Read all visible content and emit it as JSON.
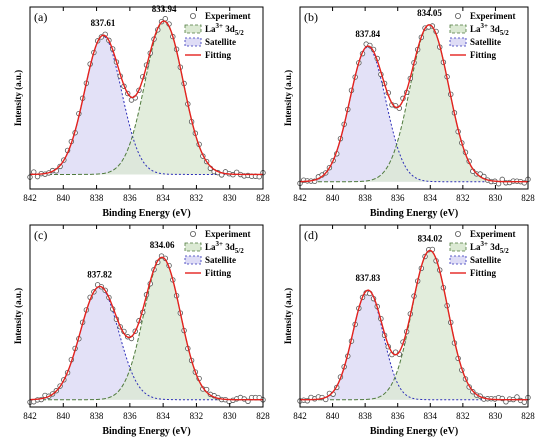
{
  "chart_data": [
    {
      "type": "scatter",
      "panel_label": "(a)",
      "xlabel": "Binding Energy (eV)",
      "ylabel": "Intensity (a.u.)",
      "xlim": [
        842,
        828
      ],
      "x_reversed": true,
      "xticks": [
        "842",
        "840",
        "838",
        "836",
        "834",
        "832",
        "830",
        "828"
      ],
      "legend": [
        "Experiment",
        "La3+ 3d5/2",
        "Satellite",
        "Fitting"
      ],
      "legend_position": "top-right",
      "peak_labels": [
        {
          "text": "837.61",
          "x": 837.61
        },
        {
          "text": "833.94",
          "x": 833.94
        }
      ],
      "series": [
        {
          "name": "La3+ 3d5/2",
          "center": 833.94,
          "height": 0.84,
          "fwhm": 2.7
        },
        {
          "name": "Satellite",
          "center": 837.61,
          "height": 0.76,
          "fwhm": 2.6
        }
      ],
      "baseline": 0.08
    },
    {
      "type": "scatter",
      "panel_label": "(b)",
      "xlabel": "Binding Energy (eV)",
      "ylabel": "Intensity (a.u.)",
      "xlim": [
        842,
        828
      ],
      "x_reversed": true,
      "xticks": [
        "842",
        "840",
        "838",
        "836",
        "834",
        "832",
        "830",
        "828"
      ],
      "legend": [
        "Experiment",
        "La3+ 3d5/2",
        "Satellite",
        "Fitting"
      ],
      "legend_position": "top-right",
      "peak_labels": [
        {
          "text": "837.84",
          "x": 837.84
        },
        {
          "text": "834.05",
          "x": 834.05
        }
      ],
      "series": [
        {
          "name": "La3+ 3d5/2",
          "center": 834.05,
          "height": 0.86,
          "fwhm": 2.8
        },
        {
          "name": "Satellite",
          "center": 837.84,
          "height": 0.74,
          "fwhm": 2.6
        }
      ],
      "baseline": 0.04
    },
    {
      "type": "scatter",
      "panel_label": "(c)",
      "xlabel": "Binding Energy (eV)",
      "ylabel": "Intensity (a.u.)",
      "xlim": [
        842,
        828
      ],
      "x_reversed": true,
      "xticks": [
        "842",
        "840",
        "838",
        "836",
        "834",
        "832",
        "830",
        "828"
      ],
      "legend": [
        "Experiment",
        "La3+ 3d5/2",
        "Satellite",
        "Fitting"
      ],
      "legend_position": "top-right",
      "peak_labels": [
        {
          "text": "837.82",
          "x": 837.82
        },
        {
          "text": "834.06",
          "x": 834.06
        }
      ],
      "series": [
        {
          "name": "La3+ 3d5/2",
          "center": 834.06,
          "height": 0.78,
          "fwhm": 2.6
        },
        {
          "name": "Satellite",
          "center": 837.82,
          "height": 0.62,
          "fwhm": 2.7
        }
      ],
      "baseline": 0.04
    },
    {
      "type": "scatter",
      "panel_label": "(d)",
      "xlabel": "Binding Energy (eV)",
      "ylabel": "Intensity (a.u.)",
      "xlim": [
        842,
        828
      ],
      "x_reversed": true,
      "xticks": [
        "842",
        "840",
        "838",
        "836",
        "834",
        "832",
        "830",
        "828"
      ],
      "legend": [
        "Experiment",
        "La3+ 3d5/2",
        "Satellite",
        "Fitting"
      ],
      "legend_position": "top-right",
      "peak_labels": [
        {
          "text": "837.83",
          "x": 837.83
        },
        {
          "text": "834.02",
          "x": 834.02
        }
      ],
      "series": [
        {
          "name": "La3+ 3d5/2",
          "center": 834.02,
          "height": 0.82,
          "fwhm": 2.6
        },
        {
          "name": "Satellite",
          "center": 837.83,
          "height": 0.6,
          "fwhm": 2.2
        }
      ],
      "baseline": 0.04
    }
  ],
  "colors": {
    "fitting": "#e3221e",
    "la_fill": "#dbe9d3",
    "la_line": "#4f7a3d",
    "sat_fill": "#dedcf6",
    "sat_line": "#2d2fb8",
    "experiment": "#555555"
  }
}
